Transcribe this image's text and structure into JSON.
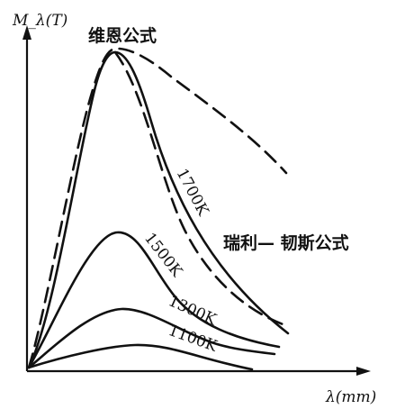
{
  "chart_data": {
    "type": "line",
    "ylabel": "M_λ(T)",
    "xlabel": "λ(mm)",
    "series": [
      {
        "name": "1700K",
        "kind": "solid",
        "x": [
          0,
          0.05,
          0.1,
          0.2,
          0.3,
          0.4,
          0.5,
          0.6,
          0.7,
          0.8,
          0.9,
          1.0
        ],
        "y": [
          0,
          0.12,
          0.45,
          0.87,
          1.0,
          0.92,
          0.75,
          0.6,
          0.48,
          0.38,
          0.3,
          0.24
        ]
      },
      {
        "name": "1500K",
        "kind": "solid",
        "x": [
          0,
          0.05,
          0.1,
          0.2,
          0.3,
          0.4,
          0.5,
          0.6,
          0.7,
          0.8,
          0.9,
          1.0
        ],
        "y": [
          0,
          0.04,
          0.15,
          0.4,
          0.52,
          0.5,
          0.43,
          0.35,
          0.29,
          0.24,
          0.2,
          0.16
        ]
      },
      {
        "name": "1300K",
        "kind": "solid",
        "x": [
          0,
          0.05,
          0.1,
          0.2,
          0.3,
          0.4,
          0.5,
          0.6,
          0.7,
          0.8,
          0.9,
          1.0
        ],
        "y": [
          0,
          0.01,
          0.05,
          0.17,
          0.25,
          0.26,
          0.24,
          0.2,
          0.17,
          0.14,
          0.12,
          0.1
        ]
      },
      {
        "name": "1100K",
        "kind": "solid",
        "x": [
          0,
          0.05,
          0.1,
          0.2,
          0.3,
          0.4,
          0.5,
          0.6,
          0.7,
          0.8,
          0.9,
          1.0
        ],
        "y": [
          0,
          0.003,
          0.015,
          0.06,
          0.1,
          0.11,
          0.1,
          0.08,
          0.06,
          0.04,
          0.02,
          0.01
        ]
      }
    ],
    "annotations": [
      "维恩公式",
      "瑞利— 韧斯公式"
    ],
    "grid": false,
    "legend": "inline"
  }
}
